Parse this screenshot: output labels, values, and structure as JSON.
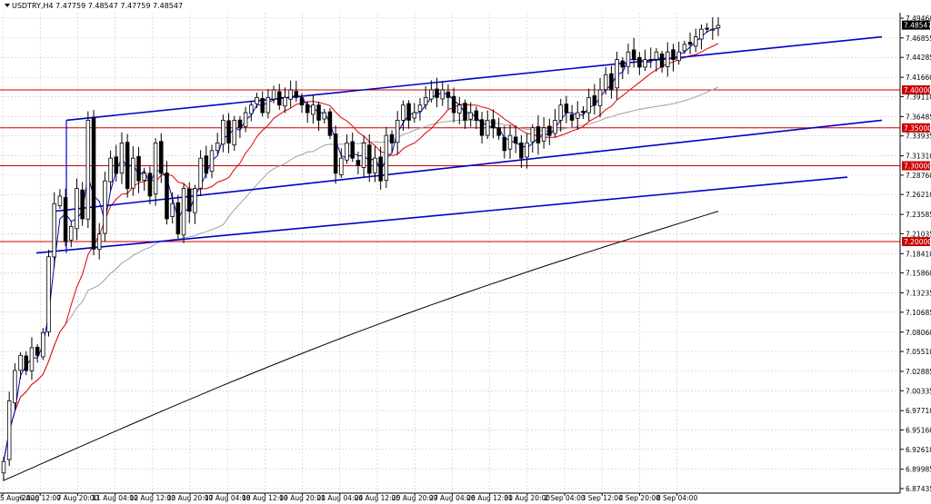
{
  "header": {
    "symbol_text": "USDTRY,H4  7.47759 7.48547 7.47759 7.48547"
  },
  "chart_data": {
    "type": "candlestick",
    "symbol": "USDTRY",
    "timeframe": "H4",
    "ohlc_display": {
      "open": 7.47759,
      "high": 7.48547,
      "low": 7.47759,
      "close": 7.48547
    },
    "current_price": "7.48547",
    "colors": {
      "bull": "#ffffff",
      "bear": "#000000",
      "grid": "#c8c8c8",
      "levels": "#cc0000",
      "channel": "#0000c8",
      "ma_fast": "#0000c8",
      "ma_mid": "#e00000",
      "ma_slow": "#a0a0a0",
      "ma_long": "#000000"
    },
    "grid": true,
    "ylim": [
      6.88,
      7.5
    ],
    "y_ticks": [
      "7.49460",
      "7.46855",
      "7.44285",
      "7.41660",
      "7.39110",
      "7.36485",
      "7.33935",
      "7.31310",
      "7.28760",
      "7.26210",
      "7.23585",
      "7.21035",
      "7.18410",
      "7.15860",
      "7.13235",
      "7.10685",
      "7.08060",
      "7.05510",
      "7.02885",
      "7.00335",
      "6.97710",
      "6.95160",
      "6.92610",
      "6.89985",
      "6.87435"
    ],
    "x_ticks": [
      "5 Aug 2020",
      "6 Aug 12:00",
      "7 Aug 20:00",
      "11 Aug 04:00",
      "12 Aug 12:00",
      "13 Aug 20:00",
      "17 Aug 04:00",
      "18 Aug 12:00",
      "19 Aug 20:00",
      "21 Aug 04:00",
      "24 Aug 12:00",
      "25 Aug 20:00",
      "27 Aug 04:00",
      "28 Aug 12:00",
      "31 Aug 20:00",
      "2 Sep 04:00",
      "3 Sep 12:00",
      "4 Sep 20:00",
      "8 Sep 04:00"
    ],
    "levels": [
      {
        "value": 7.4,
        "label": "7.40000"
      },
      {
        "value": 7.35,
        "label": "7.35000"
      },
      {
        "value": 7.3,
        "label": "7.30000"
      },
      {
        "value": 7.2,
        "label": "7.20000"
      }
    ],
    "closes": [
      6.91,
      6.99,
      7.03,
      7.05,
      7.03,
      7.06,
      7.05,
      7.08,
      7.18,
      7.25,
      7.26,
      7.2,
      7.22,
      7.27,
      7.23,
      7.36,
      7.19,
      7.21,
      7.28,
      7.31,
      7.29,
      7.33,
      7.27,
      7.31,
      7.28,
      7.29,
      7.26,
      7.33,
      7.29,
      7.23,
      7.25,
      7.21,
      7.27,
      7.24,
      7.27,
      7.31,
      7.29,
      7.32,
      7.33,
      7.36,
      7.33,
      7.36,
      7.35,
      7.37,
      7.38,
      7.39,
      7.37,
      7.39,
      7.4,
      7.38,
      7.39,
      7.4,
      7.39,
      7.38,
      7.37,
      7.38,
      7.36,
      7.37,
      7.34,
      7.29,
      7.31,
      7.33,
      7.31,
      7.3,
      7.33,
      7.29,
      7.31,
      7.28,
      7.34,
      7.33,
      7.36,
      7.38,
      7.36,
      7.37,
      7.38,
      7.39,
      7.4,
      7.39,
      7.4,
      7.39,
      7.37,
      7.38,
      7.36,
      7.37,
      7.36,
      7.34,
      7.36,
      7.35,
      7.34,
      7.32,
      7.34,
      7.33,
      7.31,
      7.33,
      7.35,
      7.33,
      7.35,
      7.34,
      7.36,
      7.38,
      7.37,
      7.36,
      7.37,
      7.37,
      7.39,
      7.38,
      7.4,
      7.42,
      7.4,
      7.44,
      7.43,
      7.45,
      7.44,
      7.43,
      7.44,
      7.44,
      7.45,
      7.43,
      7.45,
      7.44,
      7.45,
      7.46,
      7.46,
      7.47,
      7.48,
      7.48,
      7.48,
      7.485
    ]
  }
}
